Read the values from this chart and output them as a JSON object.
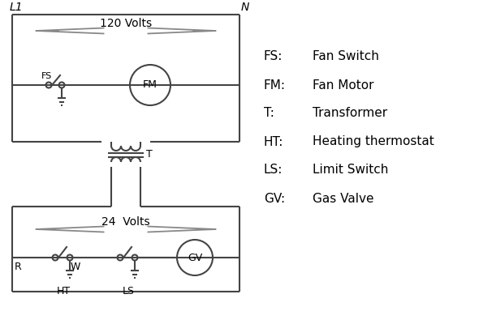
{
  "bg_color": "#ffffff",
  "line_color": "#444444",
  "arrow_color": "#888888",
  "text_color": "#000000",
  "legend": {
    "FS": "Fan Switch",
    "FM": "Fan Motor",
    "T": "Transformer",
    "HT": "Heating thermostat",
    "LS": "Limit Switch",
    "GV": "Gas Valve"
  },
  "L1_label": "L1",
  "N_label": "N",
  "volts120": "120 Volts",
  "volts24": "24  Volts"
}
